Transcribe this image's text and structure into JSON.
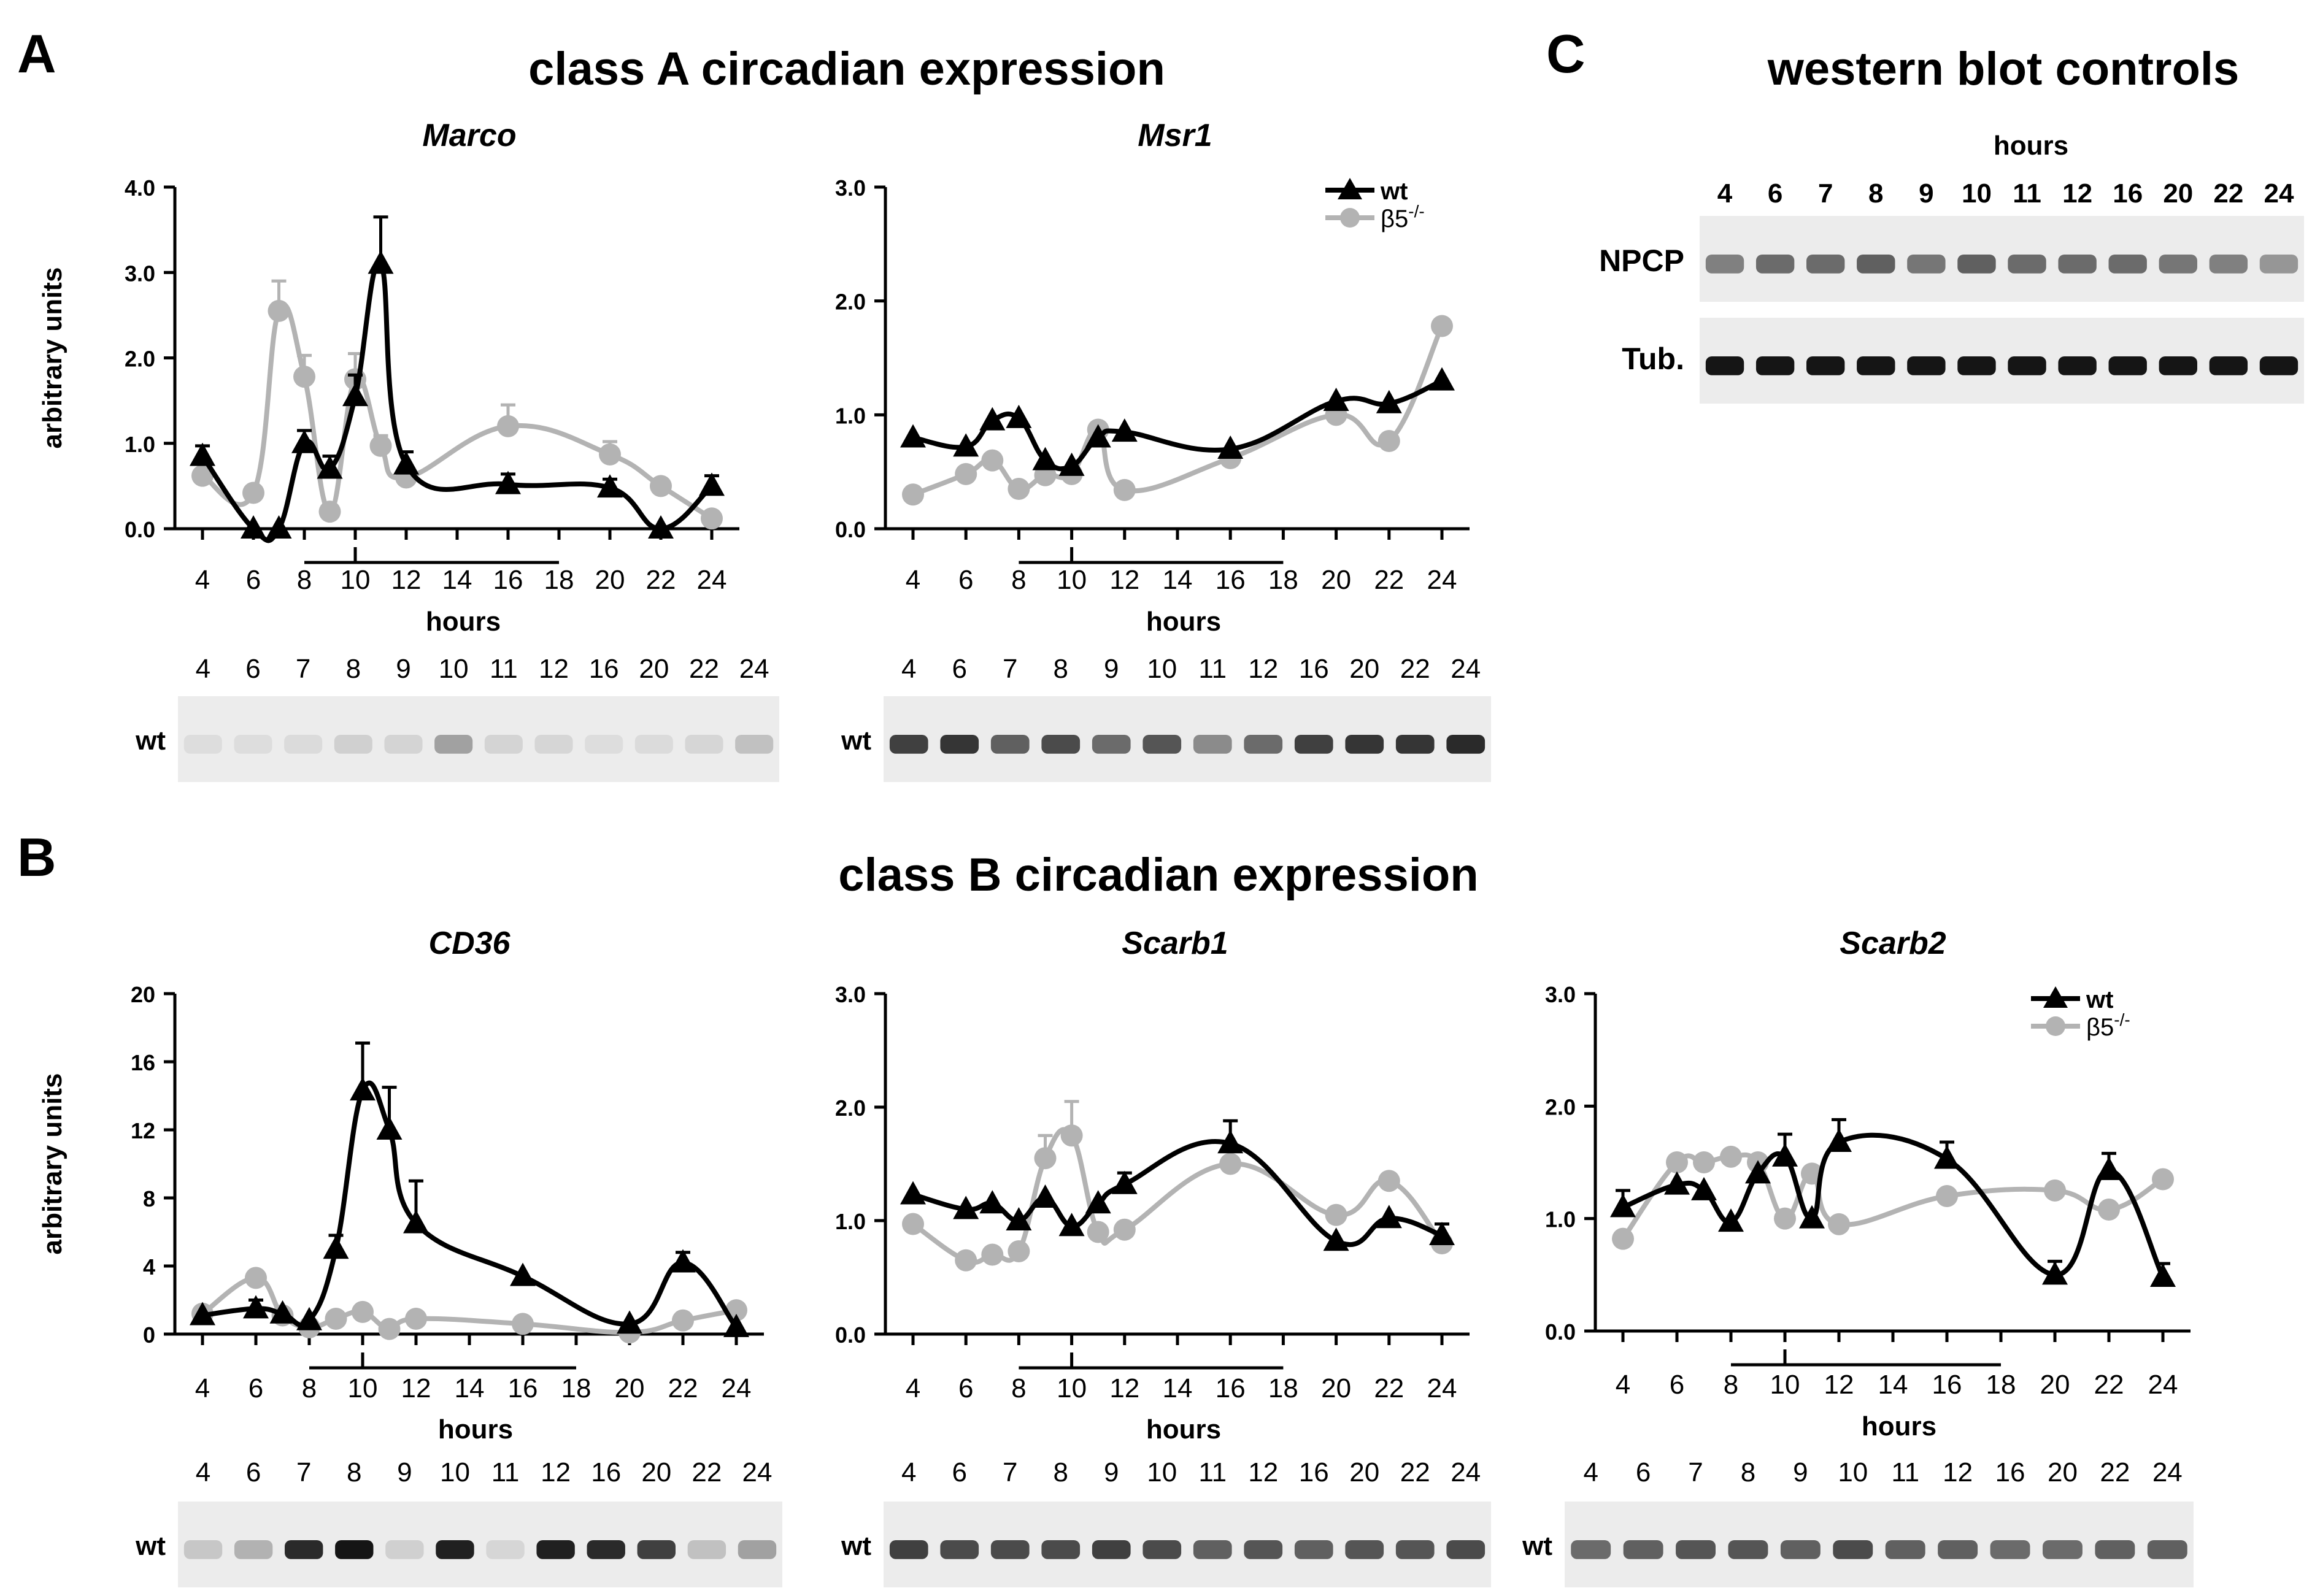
{
  "panels": {
    "A": {
      "letter": "A",
      "heading": "class A circadian expression"
    },
    "B": {
      "letter": "B",
      "heading": "class B circadian expression"
    },
    "C": {
      "letter": "C",
      "heading": "western blot controls"
    }
  },
  "shared": {
    "hours_label": "hours",
    "x_ticks": [
      "4",
      "6",
      "8",
      "10",
      "12",
      "14",
      "16",
      "18",
      "20",
      "22",
      "24"
    ],
    "blot_lanes": [
      "4",
      "6",
      "7",
      "8",
      "9",
      "10",
      "11",
      "12",
      "16",
      "20",
      "22",
      "24"
    ],
    "blot_row_label": "wt",
    "legend": {
      "wt": "wt",
      "ko": "β5",
      "ko_sup": "-/-"
    },
    "colors": {
      "wt": "#000000",
      "ko": "#b3b3b3"
    }
  },
  "western_controls": {
    "hours_label": "hours",
    "rows": [
      "NPCP",
      "Tub."
    ]
  },
  "chart_data": [
    {
      "type": "line",
      "title": "Marco",
      "ylabel": "arbitrary units",
      "xlabel": "hours",
      "ylim": [
        0,
        4
      ],
      "yticks": [
        "0.0",
        "1.0",
        "2.0",
        "3.0",
        "4.0"
      ],
      "series": [
        {
          "name": "wt",
          "x": [
            4,
            6,
            7,
            8,
            9,
            10,
            11,
            12,
            16,
            20,
            22,
            24
          ],
          "values": [
            0.85,
            0.0,
            0.0,
            1.0,
            0.7,
            1.55,
            3.1,
            0.75,
            0.52,
            0.48,
            0.0,
            0.5
          ],
          "err": [
            0.12,
            0,
            0,
            0.15,
            0.15,
            0.25,
            0.55,
            0.15,
            0.12,
            0.1,
            0,
            0.12
          ]
        },
        {
          "name": "β5-/-",
          "x": [
            4,
            6,
            7,
            8,
            9,
            10,
            11,
            12,
            16,
            20,
            22,
            24
          ],
          "values": [
            0.62,
            0.42,
            2.55,
            1.78,
            0.2,
            1.75,
            0.97,
            0.6,
            1.2,
            0.87,
            0.5,
            0.12
          ],
          "err": [
            0,
            0,
            0.35,
            0.25,
            0,
            0.3,
            0.12,
            0,
            0.25,
            0.15,
            0,
            0
          ]
        }
      ],
      "blot": {
        "label": "wt",
        "bands": [
          0.02,
          0.02,
          0.03,
          0.08,
          0.06,
          0.3,
          0.06,
          0.05,
          0.02,
          0.03,
          0.05,
          0.15
        ]
      }
    },
    {
      "type": "line",
      "title": "Msr1",
      "ylabel": "",
      "xlabel": "hours",
      "ylim": [
        0,
        3
      ],
      "yticks": [
        "0.0",
        "1.0",
        "2.0",
        "3.0"
      ],
      "legend": true,
      "series": [
        {
          "name": "wt",
          "x": [
            4,
            6,
            7,
            8,
            9,
            10,
            11,
            12,
            16,
            20,
            22,
            24
          ],
          "values": [
            0.8,
            0.72,
            0.95,
            0.97,
            0.6,
            0.55,
            0.8,
            0.85,
            0.7,
            1.12,
            1.1,
            1.3
          ],
          "err": [
            0,
            0,
            0,
            0,
            0,
            0,
            0,
            0,
            0,
            0,
            0,
            0
          ]
        },
        {
          "name": "β5-/-",
          "x": [
            4,
            6,
            7,
            8,
            9,
            10,
            11,
            12,
            16,
            20,
            22,
            24
          ],
          "values": [
            0.3,
            0.48,
            0.6,
            0.35,
            0.47,
            0.48,
            0.87,
            0.34,
            0.62,
            1.0,
            0.77,
            1.78
          ],
          "err": [
            0,
            0,
            0,
            0,
            0,
            0,
            0,
            0,
            0,
            0,
            0,
            0
          ]
        }
      ],
      "blot": {
        "label": "wt",
        "bands": [
          0.75,
          0.8,
          0.6,
          0.7,
          0.55,
          0.65,
          0.4,
          0.55,
          0.75,
          0.8,
          0.8,
          0.85
        ]
      }
    },
    {
      "type": "line",
      "title": "CD36",
      "ylabel": "arbitrary units",
      "xlabel": "hours",
      "ylim": [
        0,
        20
      ],
      "yticks": [
        "0",
        "4",
        "8",
        "12",
        "16",
        "20"
      ],
      "series": [
        {
          "name": "wt",
          "x": [
            4,
            6,
            7,
            8,
            9,
            10,
            11,
            12,
            16,
            20,
            22,
            24
          ],
          "values": [
            1.1,
            1.5,
            1.2,
            0.8,
            5.0,
            14.3,
            12.0,
            6.5,
            3.4,
            0.6,
            4.2,
            0.4
          ],
          "err": [
            0,
            0.5,
            0,
            0,
            0.8,
            2.8,
            2.5,
            2.5,
            0,
            0,
            0.6,
            0
          ]
        },
        {
          "name": "β5-/-",
          "x": [
            4,
            6,
            7,
            8,
            9,
            10,
            11,
            12,
            16,
            20,
            22,
            24
          ],
          "values": [
            1.2,
            3.3,
            1.1,
            0.4,
            0.9,
            1.3,
            0.3,
            0.9,
            0.6,
            0.1,
            0.8,
            1.4
          ],
          "err": [
            0,
            0,
            0,
            0,
            0,
            0,
            0,
            0,
            0,
            0,
            0,
            0
          ]
        }
      ],
      "blot": {
        "label": "wt",
        "bands": [
          0.12,
          0.22,
          0.85,
          0.95,
          0.08,
          0.9,
          0.05,
          0.9,
          0.85,
          0.75,
          0.15,
          0.3
        ]
      }
    },
    {
      "type": "line",
      "title": "Scarb1",
      "ylabel": "",
      "xlabel": "hours",
      "ylim": [
        0,
        3
      ],
      "yticks": [
        "0.0",
        "1.0",
        "2.0",
        "3.0"
      ],
      "series": [
        {
          "name": "wt",
          "x": [
            4,
            6,
            7,
            8,
            9,
            10,
            11,
            12,
            16,
            20,
            22,
            24
          ],
          "values": [
            1.23,
            1.1,
            1.15,
            1.0,
            1.2,
            0.95,
            1.15,
            1.32,
            1.68,
            0.82,
            1.02,
            0.87
          ],
          "err": [
            0,
            0,
            0,
            0,
            0,
            0,
            0,
            0.1,
            0.2,
            0,
            0,
            0.1
          ]
        },
        {
          "name": "β5-/-",
          "x": [
            4,
            6,
            7,
            8,
            9,
            10,
            11,
            12,
            16,
            20,
            22,
            24
          ],
          "values": [
            0.97,
            0.65,
            0.7,
            0.73,
            1.55,
            1.75,
            0.9,
            0.92,
            1.5,
            1.05,
            1.35,
            0.8
          ],
          "err": [
            0,
            0,
            0,
            0,
            0.2,
            0.3,
            0,
            0,
            0,
            0,
            0,
            0
          ]
        }
      ],
      "blot": {
        "label": "wt",
        "bands": [
          0.75,
          0.7,
          0.7,
          0.7,
          0.75,
          0.7,
          0.6,
          0.65,
          0.6,
          0.65,
          0.65,
          0.7
        ]
      }
    },
    {
      "type": "line",
      "title": "Scarb2",
      "ylabel": "",
      "xlabel": "hours",
      "ylim": [
        0,
        3
      ],
      "yticks": [
        "0.0",
        "1.0",
        "2.0",
        "3.0"
      ],
      "legend": true,
      "series": [
        {
          "name": "wt",
          "x": [
            4,
            6,
            7,
            8,
            9,
            10,
            11,
            12,
            16,
            20,
            22,
            24
          ],
          "values": [
            1.1,
            1.3,
            1.25,
            0.97,
            1.4,
            1.55,
            1.0,
            1.68,
            1.53,
            0.5,
            1.43,
            0.48
          ],
          "err": [
            0.15,
            0,
            0,
            0,
            0,
            0.2,
            0,
            0.2,
            0.15,
            0.12,
            0.15,
            0.12
          ]
        },
        {
          "name": "β5-/-",
          "x": [
            4,
            6,
            7,
            8,
            9,
            10,
            11,
            12,
            16,
            20,
            22,
            24
          ],
          "values": [
            0.82,
            1.5,
            1.5,
            1.55,
            1.5,
            1.0,
            1.4,
            0.95,
            1.2,
            1.25,
            1.08,
            1.35
          ],
          "err": [
            0,
            0,
            0,
            0,
            0,
            0,
            0,
            0,
            0,
            0,
            0,
            0
          ]
        }
      ],
      "blot": {
        "label": "wt",
        "bands": [
          0.55,
          0.6,
          0.65,
          0.65,
          0.6,
          0.7,
          0.6,
          0.6,
          0.55,
          0.55,
          0.6,
          0.6
        ]
      }
    }
  ]
}
